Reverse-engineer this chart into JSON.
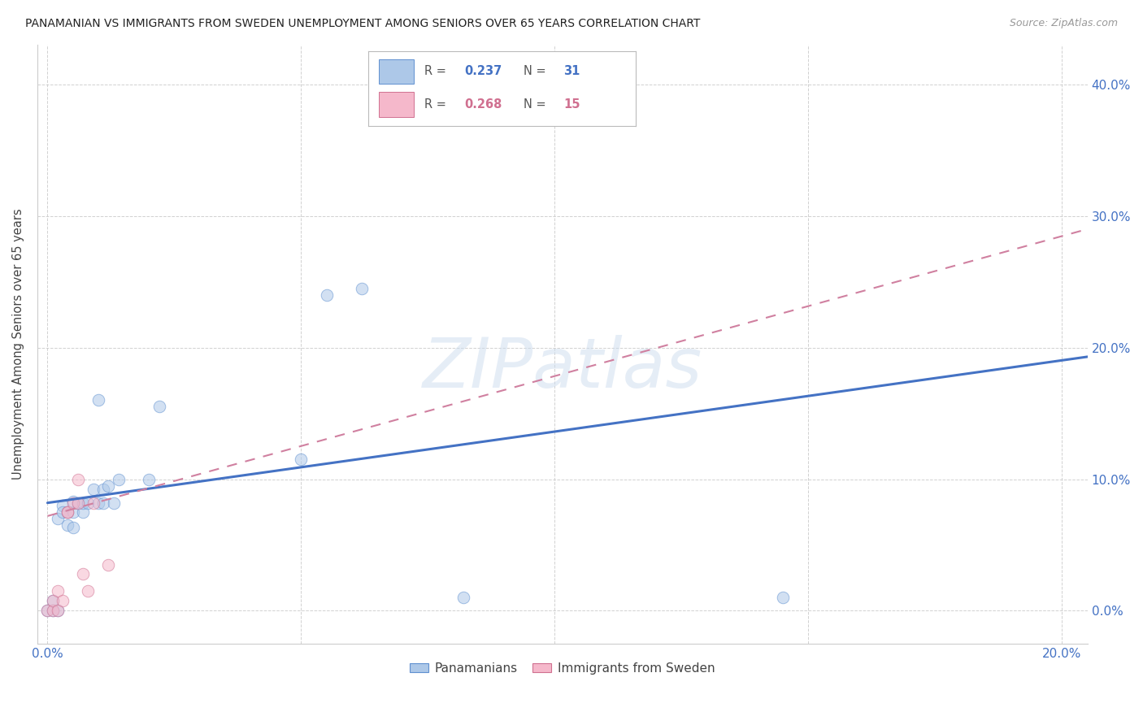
{
  "title": "PANAMANIAN VS IMMIGRANTS FROM SWEDEN UNEMPLOYMENT AMONG SENIORS OVER 65 YEARS CORRELATION CHART",
  "source": "Source: ZipAtlas.com",
  "ylabel": "Unemployment Among Seniors over 65 years",
  "xlim": [
    -0.002,
    0.205
  ],
  "ylim": [
    -0.025,
    0.43
  ],
  "xticks": [
    0.0,
    0.05,
    0.1,
    0.15,
    0.2
  ],
  "yticks": [
    0.0,
    0.1,
    0.2,
    0.3,
    0.4
  ],
  "xtick_labels": [
    "0.0%",
    "",
    "",
    "",
    "20.0%"
  ],
  "ytick_labels_right": [
    "0.0%",
    "10.0%",
    "20.0%",
    "30.0%",
    "40.0%"
  ],
  "watermark": "ZIPatlas",
  "blue_color": "#adc8e8",
  "pink_color": "#f5b8cb",
  "blue_edge_color": "#6090d0",
  "pink_edge_color": "#d07090",
  "blue_line_color": "#4472c4",
  "pink_line_color": "#d080a0",
  "legend_R_blue": "0.237",
  "legend_N_blue": "31",
  "legend_R_pink": "0.268",
  "legend_N_pink": "15",
  "blue_points_x": [
    0.0,
    0.001,
    0.001,
    0.002,
    0.002,
    0.003,
    0.003,
    0.004,
    0.004,
    0.005,
    0.005,
    0.005,
    0.006,
    0.007,
    0.007,
    0.008,
    0.009,
    0.01,
    0.01,
    0.011,
    0.011,
    0.012,
    0.013,
    0.014,
    0.02,
    0.022,
    0.05,
    0.055,
    0.062,
    0.082,
    0.145
  ],
  "blue_points_y": [
    0.0,
    0.0,
    0.008,
    0.0,
    0.07,
    0.08,
    0.075,
    0.065,
    0.075,
    0.063,
    0.075,
    0.083,
    0.082,
    0.075,
    0.082,
    0.082,
    0.092,
    0.16,
    0.082,
    0.082,
    0.092,
    0.095,
    0.082,
    0.1,
    0.1,
    0.155,
    0.115,
    0.24,
    0.245,
    0.01,
    0.01
  ],
  "pink_points_x": [
    0.0,
    0.001,
    0.001,
    0.002,
    0.002,
    0.003,
    0.004,
    0.004,
    0.005,
    0.006,
    0.006,
    0.007,
    0.008,
    0.009,
    0.012
  ],
  "pink_points_y": [
    0.0,
    0.0,
    0.008,
    0.0,
    0.015,
    0.008,
    0.075,
    0.075,
    0.082,
    0.082,
    0.1,
    0.028,
    0.015,
    0.082,
    0.035
  ],
  "blue_trendline_x": [
    0.0,
    0.205
  ],
  "blue_trendline_y": [
    0.082,
    0.193
  ],
  "pink_trendline_x": [
    0.0,
    0.205
  ],
  "pink_trendline_y": [
    0.072,
    0.29
  ],
  "scatter_size": 110,
  "scatter_alpha": 0.55
}
